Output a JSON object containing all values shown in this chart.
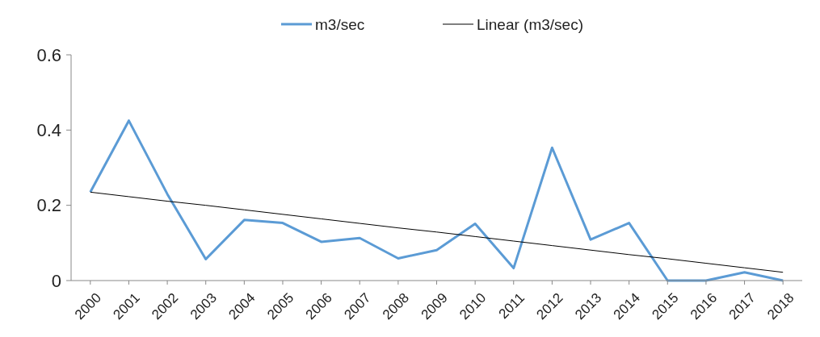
{
  "chart_data": {
    "type": "line",
    "categories": [
      "2000",
      "2001",
      "2002",
      "2003",
      "2004",
      "2005",
      "2006",
      "2007",
      "2008",
      "2009",
      "2010",
      "2011",
      "2012",
      "2013",
      "2014",
      "2015",
      "2016",
      "2017",
      "2018"
    ],
    "series": [
      {
        "name": "m3/sec",
        "color": "#5b9bd5",
        "values": [
          0.235,
          0.425,
          0.23,
          0.057,
          0.161,
          0.153,
          0.103,
          0.113,
          0.059,
          0.081,
          0.151,
          0.033,
          0.353,
          0.109,
          0.153,
          0,
          0,
          0.022,
          0
        ]
      },
      {
        "name": "Linear (m3/sec)",
        "type": "line",
        "color": "#000000",
        "values": [
          0.235,
          0.223,
          0.211,
          0.2,
          0.188,
          0.176,
          0.164,
          0.152,
          0.14,
          0.129,
          0.117,
          0.105,
          0.093,
          0.081,
          0.069,
          0.058,
          0.046,
          0.034,
          0.022
        ]
      }
    ],
    "ylim": [
      0,
      0.6
    ],
    "yticks": [
      0,
      0.2,
      0.4,
      0.6
    ],
    "grid": false,
    "legend": "top"
  }
}
